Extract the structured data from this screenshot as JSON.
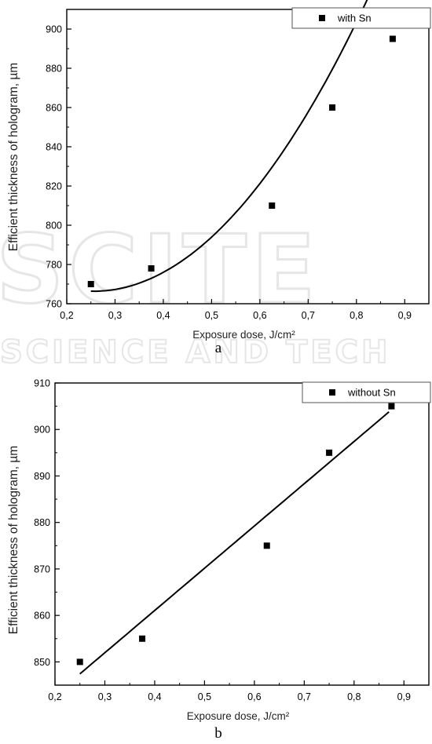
{
  "chart_data": [
    {
      "type": "scatter",
      "panel_label": "a",
      "xlabel": "Exposure dose, J/cm²",
      "ylabel": "Efficient thickness of hologram, µm",
      "xlim": [
        0.2,
        0.95
      ],
      "ylim": [
        760,
        910
      ],
      "x_ticks": [
        "0,2",
        "0,3",
        "0,4",
        "0,5",
        "0,6",
        "0,7",
        "0,8",
        "0,9"
      ],
      "x_tick_values": [
        0.2,
        0.3,
        0.4,
        0.5,
        0.6,
        0.7,
        0.8,
        0.9
      ],
      "y_ticks": [
        "760",
        "780",
        "800",
        "820",
        "840",
        "860",
        "880",
        "900"
      ],
      "y_tick_values": [
        760,
        780,
        800,
        820,
        840,
        860,
        880,
        900
      ],
      "legend": {
        "label": "with Sn",
        "position": "top-right"
      },
      "series": [
        {
          "name": "with Sn",
          "marker": "square",
          "x": [
            0.25,
            0.375,
            0.625,
            0.75,
            0.875
          ],
          "y": [
            770,
            778,
            810,
            860,
            895
          ]
        }
      ],
      "fit": {
        "kind": "polynomial",
        "x_range": [
          0.25,
          0.87
        ],
        "coefficients": [
          796.7,
          -237.1,
          463.3
        ]
      },
      "grid": false
    },
    {
      "type": "scatter",
      "panel_label": "b",
      "xlabel": "Exposure dose, J/cm²",
      "ylabel": "Efficient thickness of hologram, µm",
      "xlim": [
        0.2,
        0.95
      ],
      "ylim": [
        845,
        910
      ],
      "x_ticks": [
        "0,2",
        "0,3",
        "0,4",
        "0,5",
        "0,6",
        "0,7",
        "0,8",
        "0,9"
      ],
      "x_tick_values": [
        0.2,
        0.3,
        0.4,
        0.5,
        0.6,
        0.7,
        0.8,
        0.9
      ],
      "y_ticks": [
        "850",
        "860",
        "870",
        "880",
        "890",
        "900",
        "910"
      ],
      "y_tick_values": [
        850,
        860,
        870,
        880,
        890,
        900,
        910
      ],
      "legend": {
        "label": "without Sn",
        "position": "top-right"
      },
      "series": [
        {
          "name": "without Sn",
          "marker": "square",
          "x": [
            0.25,
            0.375,
            0.625,
            0.75,
            0.875
          ],
          "y": [
            850,
            855,
            875,
            895,
            905
          ]
        }
      ],
      "fit": {
        "kind": "linear",
        "x_range": [
          0.25,
          0.87
        ],
        "coefficients": [
          824.7,
          90.9
        ]
      },
      "grid": false
    }
  ],
  "watermark": {
    "big": "SCITE",
    "small": "SCIENCE AND TECH"
  }
}
